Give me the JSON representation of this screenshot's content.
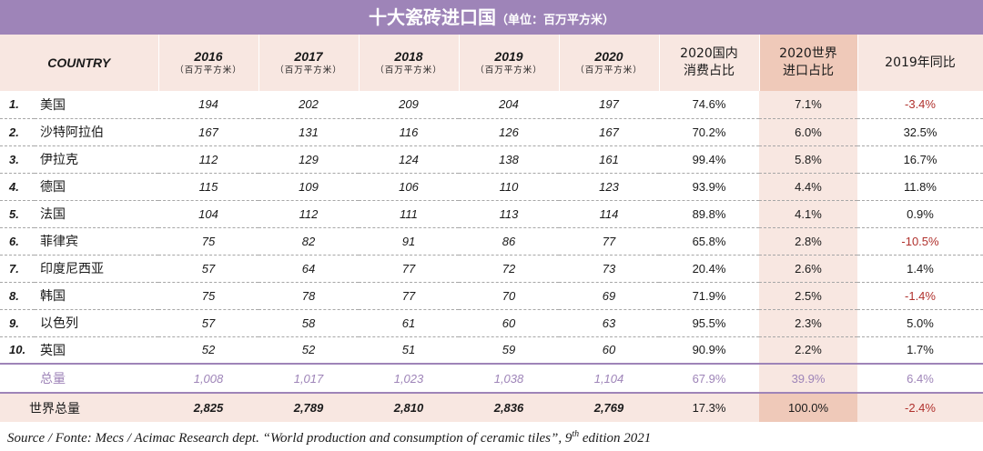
{
  "header": {
    "title": "十大瓷砖进口国",
    "unit": "（单位：百万平方米）"
  },
  "columns": {
    "country": "COUNTRY",
    "years": [
      "2016",
      "2017",
      "2018",
      "2019",
      "2020"
    ],
    "year_unit": "（百万平方米）",
    "consumption_share": [
      "2020国内",
      "消费占比"
    ],
    "import_share": [
      "2020世界",
      "进口占比"
    ],
    "yoy": "2019年同比"
  },
  "rows": [
    {
      "rank": "1.",
      "country": "美国",
      "v2016": "194",
      "v2017": "202",
      "v2018": "209",
      "v2019": "204",
      "v2020": "197",
      "cons": "74.6%",
      "imp": "7.1%",
      "yoy": "-3.4%"
    },
    {
      "rank": "2.",
      "country": "沙特阿拉伯",
      "v2016": "167",
      "v2017": "131",
      "v2018": "116",
      "v2019": "126",
      "v2020": "167",
      "cons": "70.2%",
      "imp": "6.0%",
      "yoy": "32.5%"
    },
    {
      "rank": "3.",
      "country": "伊拉克",
      "v2016": "112",
      "v2017": "129",
      "v2018": "124",
      "v2019": "138",
      "v2020": "161",
      "cons": "99.4%",
      "imp": "5.8%",
      "yoy": "16.7%"
    },
    {
      "rank": "4.",
      "country": "德国",
      "v2016": "115",
      "v2017": "109",
      "v2018": "106",
      "v2019": "110",
      "v2020": "123",
      "cons": "93.9%",
      "imp": "4.4%",
      "yoy": "11.8%"
    },
    {
      "rank": "5.",
      "country": "法国",
      "v2016": "104",
      "v2017": "112",
      "v2018": "111",
      "v2019": "113",
      "v2020": "114",
      "cons": "89.8%",
      "imp": "4.1%",
      "yoy": "0.9%"
    },
    {
      "rank": "6.",
      "country": "菲律宾",
      "v2016": "75",
      "v2017": "82",
      "v2018": "91",
      "v2019": "86",
      "v2020": "77",
      "cons": "65.8%",
      "imp": "2.8%",
      "yoy": "-10.5%"
    },
    {
      "rank": "7.",
      "country": "印度尼西亚",
      "v2016": "57",
      "v2017": "64",
      "v2018": "77",
      "v2019": "72",
      "v2020": "73",
      "cons": "20.4%",
      "imp": "2.6%",
      "yoy": "1.4%"
    },
    {
      "rank": "8.",
      "country": "韩国",
      "v2016": "75",
      "v2017": "78",
      "v2018": "77",
      "v2019": "70",
      "v2020": "69",
      "cons": "71.9%",
      "imp": "2.5%",
      "yoy": "-1.4%"
    },
    {
      "rank": "9.",
      "country": "以色列",
      "v2016": "57",
      "v2017": "58",
      "v2018": "61",
      "v2019": "60",
      "v2020": "63",
      "cons": "95.5%",
      "imp": "2.3%",
      "yoy": "5.0%"
    },
    {
      "rank": "10.",
      "country": "英国",
      "v2016": "52",
      "v2017": "52",
      "v2018": "51",
      "v2019": "59",
      "v2020": "60",
      "cons": "90.9%",
      "imp": "2.2%",
      "yoy": "1.7%"
    }
  ],
  "subtotal": {
    "label": "总量",
    "v2016": "1,008",
    "v2017": "1,017",
    "v2018": "1,023",
    "v2019": "1,038",
    "v2020": "1,104",
    "cons": "67.9%",
    "imp": "39.9%",
    "yoy": "6.4%"
  },
  "world": {
    "label": "世界总量",
    "v2016": "2,825",
    "v2017": "2,789",
    "v2018": "2,810",
    "v2019": "2,836",
    "v2020": "2,769",
    "cons": "17.3%",
    "imp": "100.0%",
    "yoy": "-2.4%"
  },
  "source": {
    "before": "Source / Fonte: Mecs / Acimac Research dept. “World production and consumption of ceramic tiles”, 9",
    "sup": "th",
    "after": " edition 2021"
  },
  "colors": {
    "accent": "#9e84b8",
    "header_bg": "#f8e7e1",
    "highlight_bg": "#efc9b9",
    "negative": "#b0312d"
  }
}
